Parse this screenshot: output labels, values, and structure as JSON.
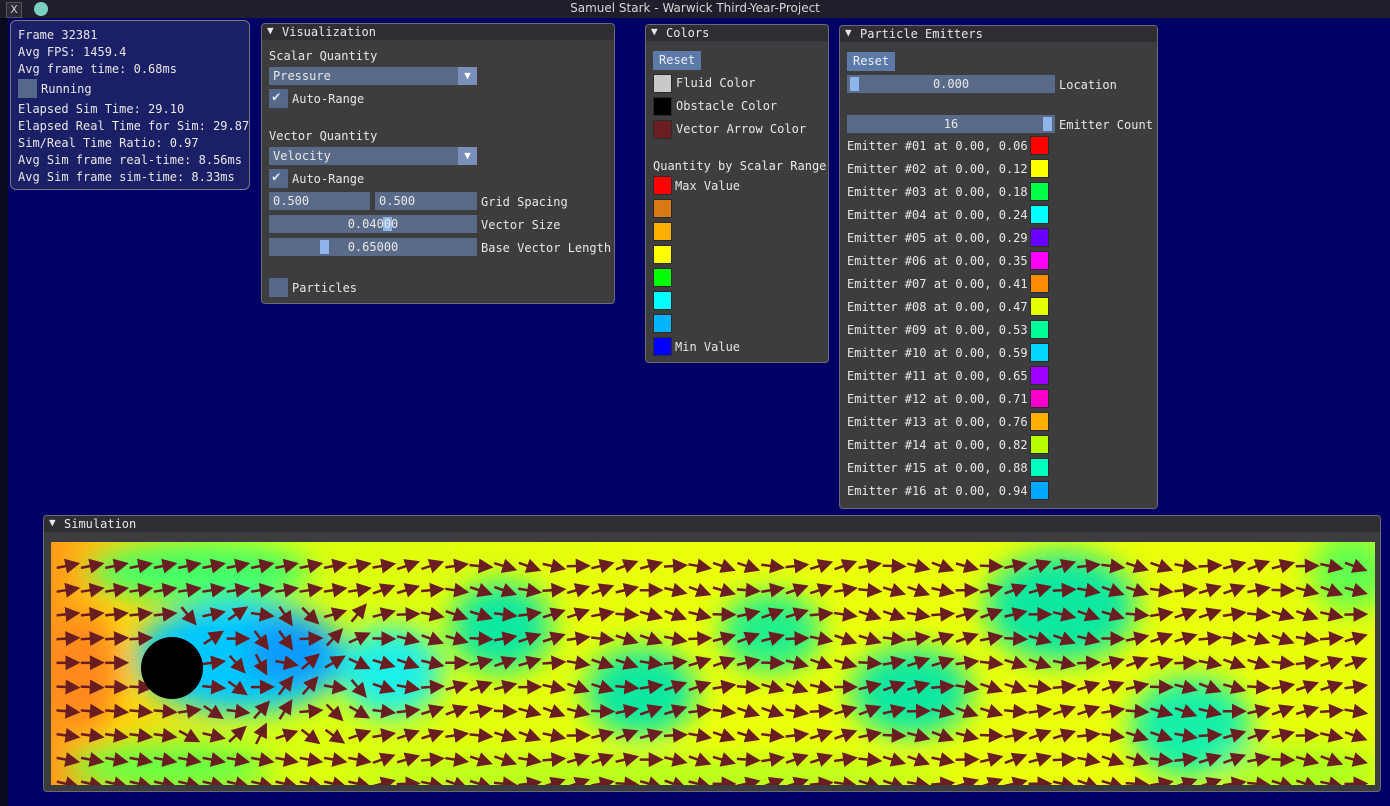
{
  "window": {
    "title": "Samuel Stark - Warwick Third-Year-Project",
    "icon": "x-app-icon"
  },
  "stats": {
    "frame": "Frame 32381",
    "avg_fps": "Avg FPS: 1459.4",
    "avg_frame_time": "Avg frame time: 0.68ms",
    "running_label": "Running",
    "elapsed_sim": "Elapsed Sim Time: 29.10",
    "elapsed_real": "Elapsed Real Time for Sim: 29.87",
    "ratio": "Sim/Real Time Ratio: 0.97",
    "avg_real": "Avg Sim frame real-time: 8.56ms",
    "avg_sim": "Avg Sim frame sim-time: 8.33ms"
  },
  "visualization": {
    "title": "Visualization",
    "scalar_label": "Scalar Quantity",
    "scalar_value": "Pressure",
    "auto_range_1": "Auto-Range",
    "vector_label": "Vector Quantity",
    "vector_value": "Velocity",
    "auto_range_2": "Auto-Range",
    "grid_x": "0.500",
    "grid_y": "0.500",
    "grid_label": "Grid Spacing",
    "vector_size": "0.04000",
    "vector_size_label": "Vector Size",
    "base_length": "0.65000",
    "base_length_label": "Base Vector Length",
    "particles_label": "Particles"
  },
  "colors": {
    "title": "Colors",
    "reset": "Reset",
    "items": [
      {
        "label": "Fluid Color",
        "color": "#c8c8c8"
      },
      {
        "label": "Obstacle Color",
        "color": "#000000"
      },
      {
        "label": "Vector Arrow Color",
        "color": "#6b1e22"
      }
    ],
    "range_title": "Quantity by Scalar Range",
    "max_label": "Max Value",
    "min_label": "Min Value",
    "range_colors": [
      "#ff0000",
      "#d97a12",
      "#ffb000",
      "#ffff00",
      "#00ff00",
      "#00ffff",
      "#00b4ff",
      "#0000ff"
    ]
  },
  "emitters": {
    "title": "Particle Emitters",
    "reset": "Reset",
    "location_value": "0.000",
    "location_label": "Location",
    "count_value": "16",
    "count_label": "Emitter Count",
    "items": [
      {
        "label": "Emitter #01 at 0.00, 0.06",
        "color": "#ff0000"
      },
      {
        "label": "Emitter #02 at 0.00, 0.12",
        "color": "#ffff00"
      },
      {
        "label": "Emitter #03 at 0.00, 0.18",
        "color": "#00ff44"
      },
      {
        "label": "Emitter #04 at 0.00, 0.24",
        "color": "#00ffff"
      },
      {
        "label": "Emitter #05 at 0.00, 0.29",
        "color": "#6a00ff"
      },
      {
        "label": "Emitter #06 at 0.00, 0.35",
        "color": "#ff00ff"
      },
      {
        "label": "Emitter #07 at 0.00, 0.41",
        "color": "#ff8a00"
      },
      {
        "label": "Emitter #08 at 0.00, 0.47",
        "color": "#e4ff00"
      },
      {
        "label": "Emitter #09 at 0.00, 0.53",
        "color": "#00ff99"
      },
      {
        "label": "Emitter #10 at 0.00, 0.59",
        "color": "#00d8ff"
      },
      {
        "label": "Emitter #11 at 0.00, 0.65",
        "color": "#a000ff"
      },
      {
        "label": "Emitter #12 at 0.00, 0.71",
        "color": "#ff00cc"
      },
      {
        "label": "Emitter #13 at 0.00, 0.76",
        "color": "#ffb000"
      },
      {
        "label": "Emitter #14 at 0.00, 0.82",
        "color": "#b8ff00"
      },
      {
        "label": "Emitter #15 at 0.00, 0.88",
        "color": "#00ffc0"
      },
      {
        "label": "Emitter #16 at 0.00, 0.94",
        "color": "#00a8ff"
      }
    ]
  },
  "simulation": {
    "title": "Simulation",
    "arrow_color": "#6b1e22",
    "obstacle_color": "#000000"
  }
}
